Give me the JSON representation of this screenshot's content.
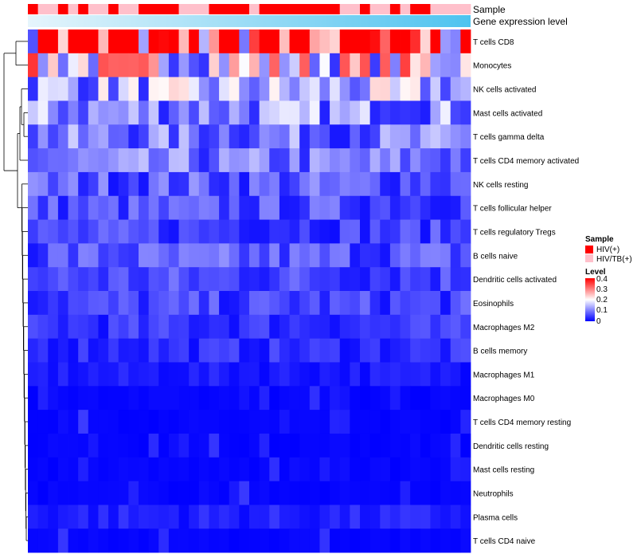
{
  "chart_data": {
    "type": "heatmap",
    "title": "",
    "annotation_labels": [
      "Sample",
      "Gene expression level"
    ],
    "rows": [
      "T cells CD8",
      "Monocytes",
      "NK cells activated",
      "Mast cells activated",
      "T cells gamma delta",
      "T cells CD4 memory activated",
      "NK cells resting",
      "T cells follicular helper",
      "T cells regulatory  Tregs",
      "B cells naive",
      "Dendritic cells activated",
      "Eosinophils",
      "Macrophages M2",
      "B cells memory",
      "Macrophages M1",
      "Macrophages M0",
      "T cells CD4 memory resting",
      "Dendritic cells resting",
      "Mast cells resting",
      "Neutrophils",
      "Plasma cells",
      "T cells CD4 naive"
    ],
    "n_samples": 44,
    "sample_groups": [
      "HIV(+)",
      "HIV/TB(+)",
      "HIV/TB(+)",
      "HIV(+)",
      "HIV/TB(+)",
      "HIV(+)",
      "HIV/TB(+)",
      "HIV/TB(+)",
      "HIV(+)",
      "HIV/TB(+)",
      "HIV/TB(+)",
      "HIV(+)",
      "HIV(+)",
      "HIV(+)",
      "HIV(+)",
      "HIV/TB(+)",
      "HIV/TB(+)",
      "HIV/TB(+)",
      "HIV(+)",
      "HIV(+)",
      "HIV(+)",
      "HIV(+)",
      "HIV/TB(+)",
      "HIV(+)",
      "HIV(+)",
      "HIV(+)",
      "HIV(+)",
      "HIV(+)",
      "HIV(+)",
      "HIV(+)",
      "HIV(+)",
      "HIV/TB(+)",
      "HIV/TB(+)",
      "HIV(+)",
      "HIV/TB(+)",
      "HIV/TB(+)",
      "HIV(+)",
      "HIV/TB(+)",
      "HIV(+)",
      "HIV(+)",
      "HIV/TB(+)",
      "HIV/TB(+)",
      "HIV/TB(+)",
      "HIV/TB(+)"
    ],
    "row_mean_level": [
      0.32,
      0.2,
      0.13,
      0.11,
      0.09,
      0.085,
      0.07,
      0.06,
      0.05,
      0.065,
      0.055,
      0.05,
      0.04,
      0.035,
      0.02,
      0.015,
      0.012,
      0.01,
      0.008,
      0.008,
      0.025,
      0.015
    ],
    "row_dendrogram": "hierarchical clustering tree (left)",
    "legend": {
      "sample_title": "Sample",
      "sample_entries": [
        {
          "label": "HIV(+)",
          "color": "#ff0000"
        },
        {
          "label": "HIV/TB(+)",
          "color": "#ffc0cb"
        }
      ],
      "level_title": "Level",
      "level_ticks": [
        "0.4",
        "0.3",
        "0.2",
        "0.1",
        "0"
      ],
      "level_range": [
        0,
        0.4
      ],
      "placement": "right"
    },
    "colors": {
      "low": "#0000ff",
      "mid": "#ffffff",
      "high": "#ff0000",
      "gene_level_start": "#e6f5fc",
      "gene_level_end": "#4ec3ef"
    }
  }
}
